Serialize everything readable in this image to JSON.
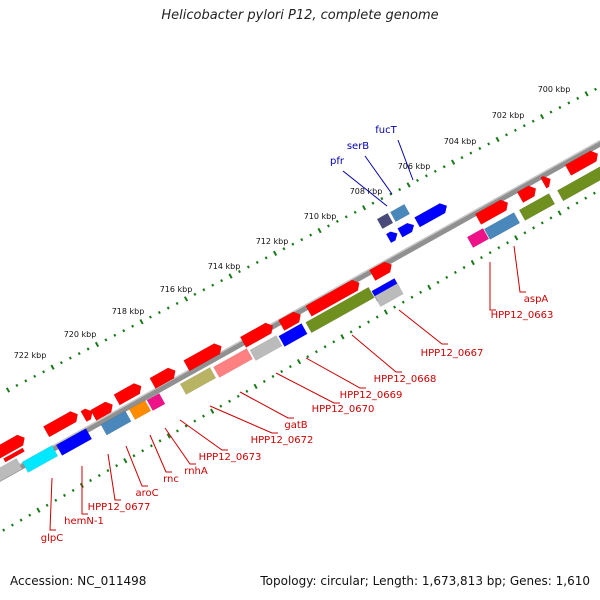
{
  "title": "Helicobacter pylori P12, complete genome",
  "footer": {
    "accession": "Accession: NC_011498",
    "topology": "Topology: circular; Length: 1,673,813 bp; Genes: 1,610"
  },
  "colors": {
    "backbone": "#909090",
    "tick": "#1a7a1a",
    "red_label": "#cc0000",
    "blue_label": "#0000aa",
    "gene_red": "#ff0000",
    "gene_blue": "#0000ff",
    "gene_steel": "#4a88bb",
    "gene_olive": "#6f8f1f",
    "gene_khaki": "#b9b463",
    "gene_magenta": "#ee1188",
    "gene_cyan": "#00e8ff",
    "gene_orange": "#ff8c00",
    "gene_grey": "#bbbbbb",
    "gene_pink": "#ff8080",
    "gene_darkslate": "#4a4a7a"
  },
  "kbp_labels": [
    "700 kbp",
    "702 kbp",
    "704 kbp",
    "706 kbp",
    "708 kbp",
    "710 kbp",
    "712 kbp",
    "714 kbp",
    "716 kbp",
    "718 kbp",
    "720 kbp",
    "722 kbp"
  ],
  "gene_labels_red": [
    "aspA",
    "HPP12_0663",
    "HPP12_0667",
    "HPP12_0668",
    "HPP12_0669",
    "HPP12_0670",
    "gatB",
    "HPP12_0672",
    "HPP12_0673",
    "rnhA",
    "rnc",
    "aroC",
    "HPP12_0677",
    "hemN-1",
    "glpC"
  ],
  "gene_labels_blue": [
    "fucT",
    "serB",
    "pfr"
  ]
}
